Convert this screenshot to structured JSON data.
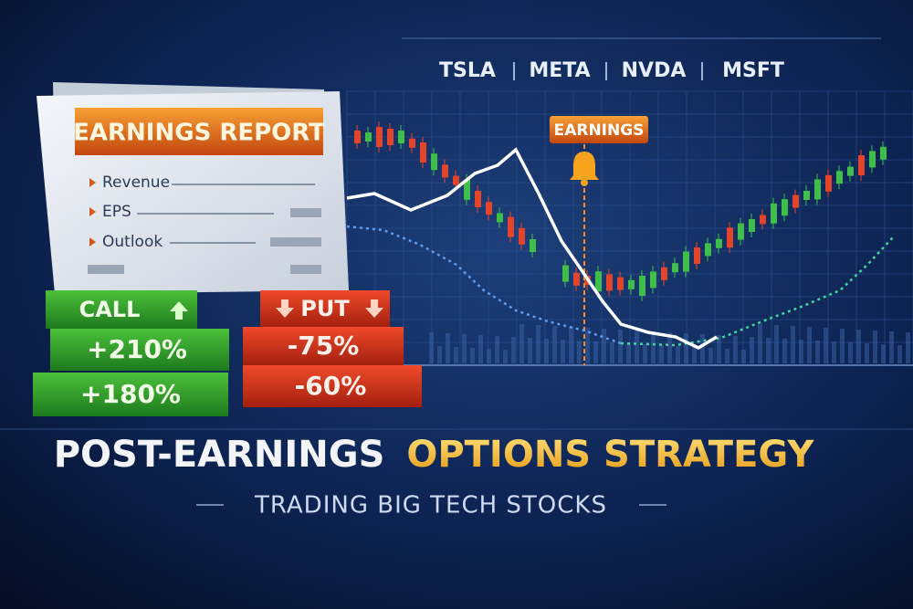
{
  "tickers": [
    "TSLA",
    "META",
    "NVDA",
    "MSFT"
  ],
  "report": {
    "title": "EARNINGS REPORT",
    "items": [
      "Revenue",
      "EPS",
      "Outlook"
    ]
  },
  "chart": {
    "marker": "EARNINGS"
  },
  "call": {
    "label": "CALL",
    "returns": [
      "+210%",
      "+180%"
    ]
  },
  "put": {
    "label": "PUT",
    "returns": [
      "-75%",
      "-60%"
    ]
  },
  "headline": {
    "part1": "POST-EARNINGS",
    "part2": "OPTIONS STRATEGY"
  },
  "subtitle": "TRADING BIG TECH STOCKS"
}
